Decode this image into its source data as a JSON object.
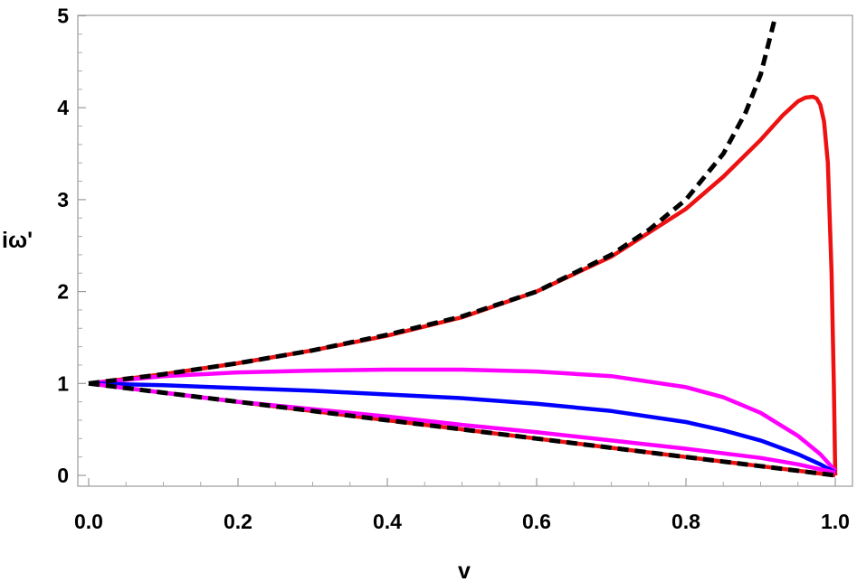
{
  "chart_data": {
    "type": "line",
    "xlabel": "v",
    "ylabel": "iω'",
    "xlim": [
      0,
      1
    ],
    "ylim": [
      -0.1,
      5
    ],
    "xticks": [
      "0.0",
      "0.2",
      "0.4",
      "0.6",
      "0.8",
      "1.0"
    ],
    "yticks": [
      "0",
      "1",
      "2",
      "3",
      "4",
      "5"
    ],
    "grid": false,
    "series": [
      {
        "color": "#ee1111",
        "style": "solid",
        "x": [
          0,
          0.1,
          0.2,
          0.3,
          0.4,
          0.5,
          0.6,
          0.7,
          0.8,
          0.85,
          0.9,
          0.93,
          0.95,
          0.96,
          0.97,
          0.975,
          0.98,
          0.985,
          0.99,
          0.995,
          0.998,
          1.0
        ],
        "y": [
          1.0,
          1.1,
          1.22,
          1.36,
          1.52,
          1.72,
          2.0,
          2.38,
          2.9,
          3.25,
          3.65,
          3.92,
          4.07,
          4.11,
          4.12,
          4.1,
          4.03,
          3.85,
          3.4,
          2.2,
          1.0,
          0.0
        ]
      },
      {
        "color": "#ee1111",
        "style": "solid",
        "x": [
          0,
          0.1,
          0.2,
          0.3,
          0.4,
          0.5,
          0.6,
          0.7,
          0.8,
          0.9,
          1.0
        ],
        "y": [
          1.0,
          0.9,
          0.8,
          0.7,
          0.6,
          0.5,
          0.4,
          0.3,
          0.2,
          0.1,
          0.0
        ]
      },
      {
        "color": "#ff00ff",
        "style": "solid",
        "x": [
          0,
          0.1,
          0.2,
          0.3,
          0.4,
          0.5,
          0.6,
          0.7,
          0.8,
          0.85,
          0.9,
          0.95,
          0.98,
          1.0
        ],
        "y": [
          1.0,
          1.08,
          1.12,
          1.14,
          1.15,
          1.15,
          1.13,
          1.08,
          0.96,
          0.85,
          0.68,
          0.43,
          0.23,
          0.05
        ]
      },
      {
        "color": "#0000ff",
        "style": "solid",
        "x": [
          0,
          0.1,
          0.2,
          0.3,
          0.4,
          0.5,
          0.6,
          0.7,
          0.8,
          0.85,
          0.9,
          0.95,
          0.98,
          1.0
        ],
        "y": [
          1.0,
          0.98,
          0.95,
          0.92,
          0.88,
          0.84,
          0.78,
          0.7,
          0.58,
          0.49,
          0.38,
          0.23,
          0.12,
          0.03
        ]
      },
      {
        "color": "#ff00ff",
        "style": "solid",
        "x": [
          0,
          0.1,
          0.2,
          0.3,
          0.4,
          0.5,
          0.6,
          0.7,
          0.8,
          0.9,
          0.95,
          1.0
        ],
        "y": [
          1.0,
          0.9,
          0.8,
          0.72,
          0.64,
          0.55,
          0.47,
          0.38,
          0.29,
          0.19,
          0.12,
          0.03
        ]
      },
      {
        "color": "#000000",
        "style": "dashed",
        "x": [
          0,
          0.1,
          0.2,
          0.3,
          0.4,
          0.5,
          0.6,
          0.7,
          0.75,
          0.8,
          0.85,
          0.88,
          0.9,
          0.92
        ],
        "y": [
          1.0,
          1.1,
          1.22,
          1.36,
          1.53,
          1.73,
          2.0,
          2.4,
          2.67,
          3.0,
          3.5,
          3.95,
          4.36,
          5.0
        ]
      },
      {
        "color": "#000000",
        "style": "dashed",
        "x": [
          0,
          0.1,
          0.2,
          0.3,
          0.4,
          0.5,
          0.6,
          0.7,
          0.8,
          0.9,
          1.0
        ],
        "y": [
          1.0,
          0.9,
          0.8,
          0.7,
          0.6,
          0.5,
          0.4,
          0.3,
          0.2,
          0.1,
          0.0
        ]
      }
    ]
  }
}
